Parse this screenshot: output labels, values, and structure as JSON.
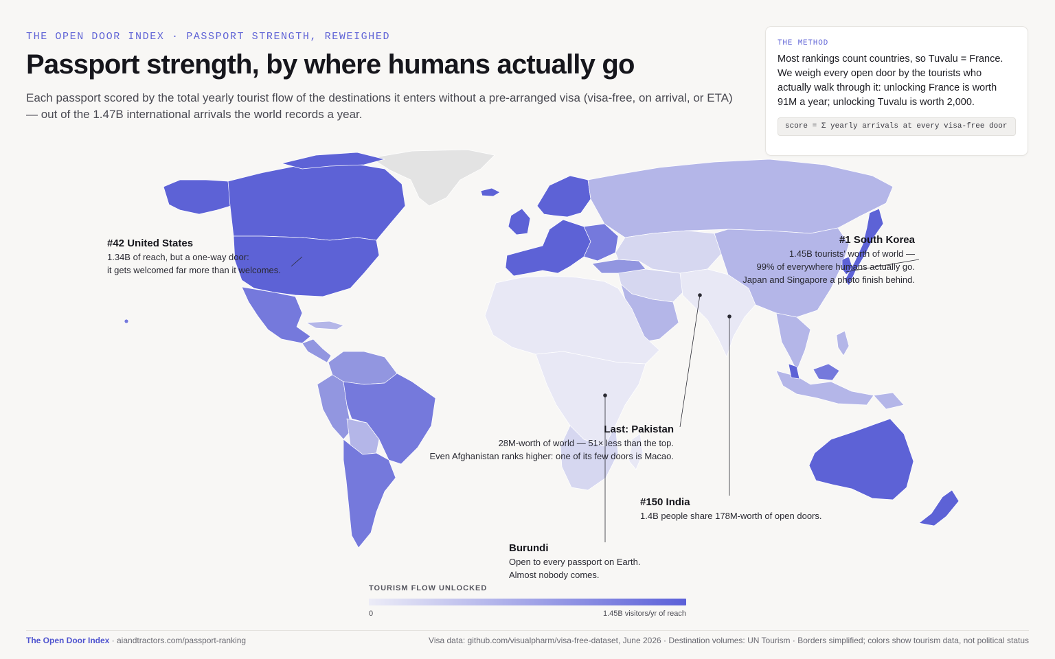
{
  "header": {
    "kicker": "THE OPEN DOOR INDEX · PASSPORT STRENGTH, REWEIGHED",
    "title": "Passport strength, by where humans actually go",
    "subtitle": "Each passport scored by the total yearly tourist flow of the destinations it enters without a pre-arranged visa (visa-free, on arrival, or ETA) — out of the 1.47B international arrivals the world records a year."
  },
  "method": {
    "label": "THE METHOD",
    "body": "Most rankings count countries, so Tuvalu = France. We weigh every open door by the tourists who actually walk through it: unlocking France is worth 91M a year; unlocking Tuvalu is worth 2,000.",
    "formula": "score = Σ yearly arrivals at every visa-free door"
  },
  "annotations": {
    "us": {
      "heading": "#42 United States",
      "line1": "1.34B of reach, but a one-way door:",
      "line2": "it gets welcomed far more than it welcomes."
    },
    "korea": {
      "heading": "#1 South Korea",
      "line1": "1.45B tourists' worth of world —",
      "line2": "99% of everywhere humans actually go.",
      "line3": "Japan and Singapore a photo finish behind."
    },
    "pakistan": {
      "heading": "Last: Pakistan",
      "line1": "28M-worth of world — 51× less than the top.",
      "line2": "Even Afghanistan ranks higher: one of its few doors is Macao."
    },
    "india": {
      "heading": "#150 India",
      "line1": "1.4B people share 178M-worth of open doors."
    },
    "burundi": {
      "heading": "Burundi",
      "line1": "Open to every passport on Earth.",
      "line2": "Almost nobody comes."
    }
  },
  "legend": {
    "label": "TOURISM FLOW UNLOCKED",
    "min_label": "0",
    "max_label": "1.45B visitors/yr of reach",
    "color_low": "#ececf7",
    "color_high": "#5b60d8"
  },
  "colors": {
    "accent": "#5f63d6",
    "no_data": "#e3e3e3",
    "level_1": "#e8e8f5",
    "level_2": "#d6d7f0",
    "level_3": "#b4b6e8",
    "level_4": "#9296e0",
    "level_5": "#7579dc",
    "level_6": "#5d62d6"
  },
  "footer": {
    "brand": "The Open Door Index",
    "site": " · aiandtractors.com/passport-ranking",
    "sources": "Visa data: github.com/visualpharm/visa-free-dataset, June 2026 · Destination volumes: UN Tourism · Borders simplified; colors show tourism data, not political status"
  }
}
